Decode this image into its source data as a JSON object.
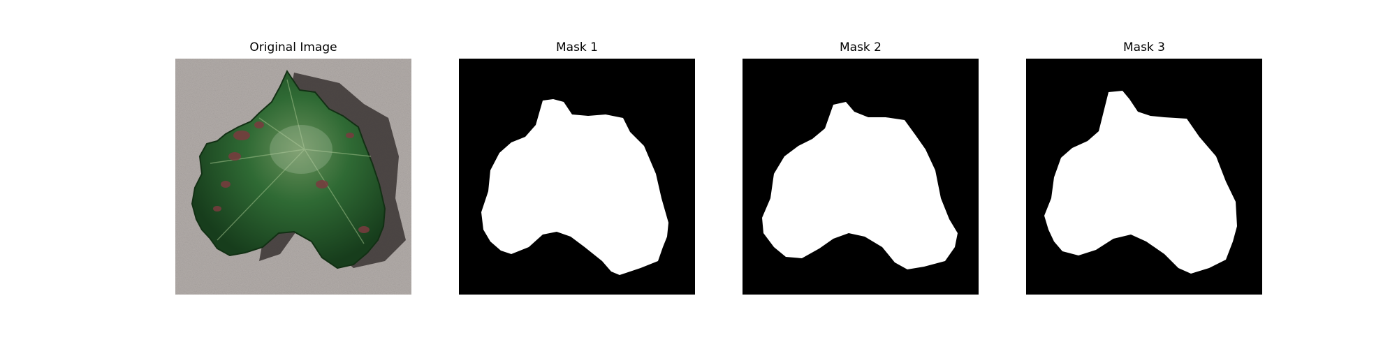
{
  "panels": [
    {
      "title": "Original Image",
      "kind": "photo",
      "subject": "leaf-photo"
    },
    {
      "title": "Mask 1",
      "kind": "mask",
      "subject": "leaf-mask"
    },
    {
      "title": "Mask 2",
      "kind": "mask",
      "subject": "leaf-mask"
    },
    {
      "title": "Mask 3",
      "kind": "mask",
      "subject": "leaf-mask"
    }
  ],
  "colors": {
    "background": "#b0aaa8",
    "leaf_dark": "#1e4a22",
    "leaf_mid": "#2f6a34",
    "leaf_light": "#5a8a4a",
    "lesion": "#7a3b3f",
    "mask_bg": "#000000",
    "mask_fg": "#ffffff"
  }
}
